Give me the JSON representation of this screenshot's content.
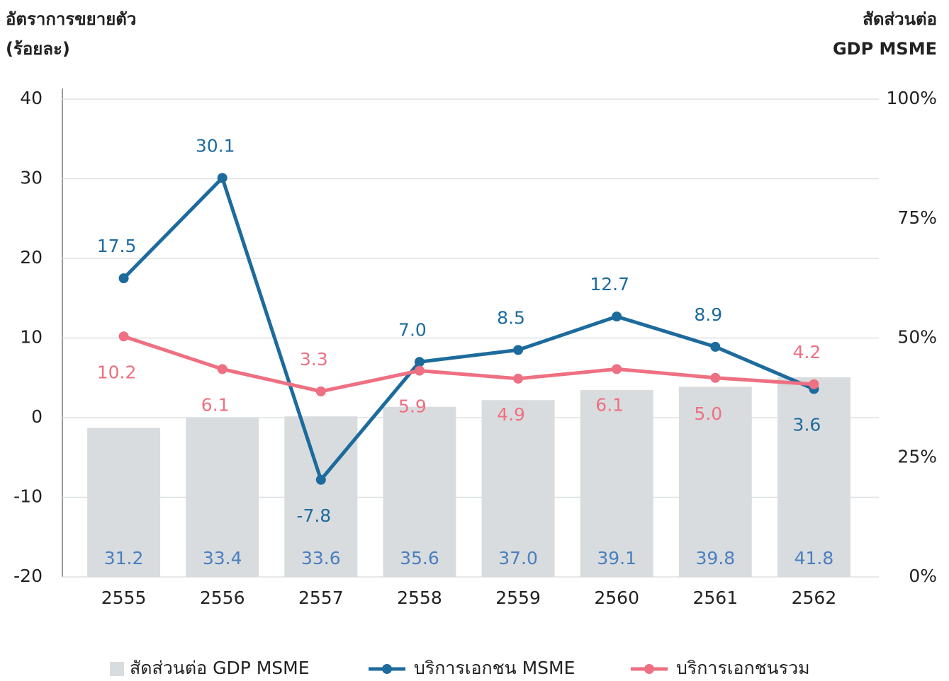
{
  "chart_data": {
    "type": "combo",
    "y_label": [
      "อัตราการขยายตัว",
      "(ร้อยละ)"
    ],
    "y2_label": [
      "สัดส่วนต่อ",
      "GDP MSME"
    ],
    "categories": [
      "2555",
      "2556",
      "2557",
      "2558",
      "2559",
      "2560",
      "2561",
      "2562"
    ],
    "series": [
      {
        "name": "สัดส่วนต่อ GDP MSME",
        "type": "bar",
        "axis": "y2",
        "color": "#d9dcde",
        "label_color": "#4a7fc0",
        "values": [
          31.2,
          33.4,
          33.6,
          35.6,
          37.0,
          39.1,
          39.8,
          41.8
        ],
        "value_labels": [
          "31.2",
          "33.4",
          "33.6",
          "35.6",
          "37.0",
          "39.1",
          "39.8",
          "41.8"
        ]
      },
      {
        "name": "บริการเอกชน MSME",
        "type": "line",
        "color": "#1d6b9d",
        "values": [
          17.5,
          30.1,
          -7.8,
          7.0,
          8.5,
          12.7,
          8.9,
          3.6
        ],
        "value_labels": [
          "17.5",
          "30.1",
          "-7.8",
          "7.0",
          "8.5",
          "12.7",
          "8.9",
          "3.6"
        ]
      },
      {
        "name": "บริการเอกชนรวม",
        "type": "line",
        "color": "#ee7082",
        "values": [
          10.2,
          6.1,
          3.3,
          5.9,
          4.9,
          6.1,
          5.0,
          4.2
        ],
        "value_labels": [
          "10.2",
          "6.1",
          "3.3",
          "5.9",
          "4.9",
          "6.1",
          "5.0",
          "4.2"
        ]
      }
    ],
    "ylim": [
      -20,
      40
    ],
    "yticks": [
      -20,
      -10,
      0,
      10,
      20,
      30,
      40
    ],
    "y2lim": [
      0,
      100
    ],
    "y2ticks": [
      {
        "value": 0,
        "label": "0%"
      },
      {
        "value": 25,
        "label": "25%"
      },
      {
        "value": 50,
        "label": "50%"
      },
      {
        "value": 75,
        "label": "75%"
      },
      {
        "value": 100,
        "label": "100%"
      }
    ],
    "grid": true,
    "legend": "bottom"
  }
}
